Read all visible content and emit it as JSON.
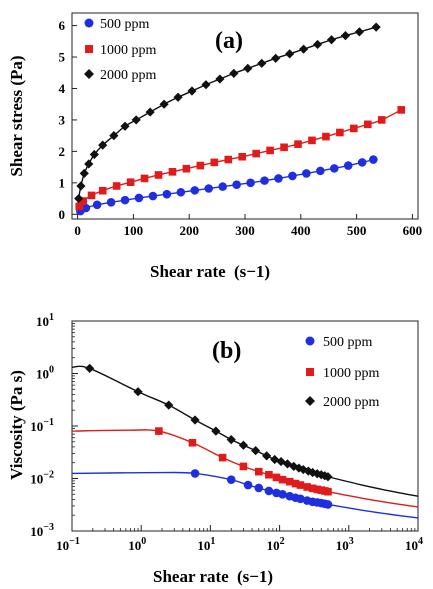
{
  "chart_data": [
    {
      "type": "scatter",
      "panel_label": "(a)",
      "xlabel": "Shear rate",
      "xlabel_unit": "(s−1)",
      "ylabel": "Shear stress (Pa)",
      "xlim": [
        -10,
        610
      ],
      "ylim": [
        -0.15,
        6.4
      ],
      "xticks": [
        0,
        100,
        200,
        300,
        400,
        500,
        600
      ],
      "yticks": [
        0,
        1,
        2,
        3,
        4,
        5,
        6
      ],
      "xticklabels": [
        "0",
        "100",
        "200",
        "300",
        "400",
        "500",
        "600"
      ],
      "yticklabels": [
        "0",
        "1",
        "2",
        "3",
        "4",
        "5",
        "6"
      ],
      "legend_position": "top-left",
      "fit_lines": true,
      "series": [
        {
          "name": "500 ppm",
          "color": "#1f2fe0",
          "marker": "circle",
          "x": [
            5,
            15,
            35,
            60,
            85,
            110,
            135,
            160,
            185,
            210,
            235,
            260,
            285,
            310,
            335,
            360,
            385,
            410,
            435,
            460,
            485,
            510,
            530
          ],
          "y": [
            0.1,
            0.2,
            0.3,
            0.38,
            0.45,
            0.52,
            0.58,
            0.64,
            0.7,
            0.76,
            0.82,
            0.88,
            0.94,
            1.0,
            1.07,
            1.14,
            1.22,
            1.3,
            1.38,
            1.46,
            1.55,
            1.65,
            1.74
          ]
        },
        {
          "name": "1000 ppm",
          "color": "#e01b1b",
          "marker": "square",
          "x": [
            3,
            10,
            25,
            45,
            70,
            95,
            120,
            145,
            170,
            195,
            220,
            245,
            270,
            295,
            320,
            345,
            370,
            395,
            420,
            445,
            470,
            495,
            520,
            545,
            580
          ],
          "y": [
            0.25,
            0.42,
            0.6,
            0.75,
            0.9,
            1.02,
            1.14,
            1.25,
            1.35,
            1.45,
            1.55,
            1.65,
            1.74,
            1.83,
            1.93,
            2.03,
            2.13,
            2.23,
            2.35,
            2.47,
            2.6,
            2.73,
            2.86,
            3.0,
            3.32
          ]
        },
        {
          "name": "2000 ppm",
          "color": "#111111",
          "marker": "diamond",
          "x": [
            2,
            6,
            12,
            20,
            30,
            45,
            65,
            85,
            105,
            130,
            155,
            180,
            205,
            230,
            255,
            280,
            305,
            330,
            355,
            380,
            405,
            430,
            455,
            480,
            505,
            535
          ],
          "y": [
            0.5,
            0.9,
            1.3,
            1.6,
            1.9,
            2.2,
            2.5,
            2.8,
            3.0,
            3.25,
            3.5,
            3.72,
            3.92,
            4.12,
            4.3,
            4.48,
            4.64,
            4.8,
            4.96,
            5.1,
            5.25,
            5.4,
            5.55,
            5.68,
            5.8,
            5.95
          ]
        }
      ]
    },
    {
      "type": "scatter",
      "panel_label": "(b)",
      "xlabel": "Shear rate",
      "xlabel_unit": "(s−1)",
      "ylabel": "Viscosity (Pa s)",
      "xscale": "log",
      "yscale": "log",
      "xlim": [
        0.1,
        10000
      ],
      "ylim": [
        0.001,
        10
      ],
      "xticks": [
        0.1,
        1,
        10,
        100,
        1000,
        10000
      ],
      "yticks": [
        0.001,
        0.01,
        0.1,
        1,
        10
      ],
      "xticklabels": [
        [
          "10",
          "−1"
        ],
        [
          "10",
          "0"
        ],
        [
          "10",
          "1"
        ],
        [
          "10",
          "2"
        ],
        [
          "10",
          "3"
        ],
        [
          "10",
          "4"
        ]
      ],
      "yticklabels": [
        [
          "10",
          "−3"
        ],
        [
          "10",
          "−2"
        ],
        [
          "10",
          "−1"
        ],
        [
          "10",
          "0"
        ],
        [
          "10",
          "1"
        ]
      ],
      "legend_position": "top-right",
      "fit_lines": true,
      "series": [
        {
          "name": "500 ppm",
          "color": "#1f2fe0",
          "marker": "circle",
          "x": [
            6,
            20,
            35,
            50,
            70,
            90,
            110,
            140,
            170,
            200,
            250,
            300,
            350,
            400,
            450,
            500
          ],
          "y": [
            0.0125,
            0.0095,
            0.0075,
            0.0066,
            0.0058,
            0.0053,
            0.005,
            0.0046,
            0.0043,
            0.0041,
            0.0038,
            0.0036,
            0.0035,
            0.0034,
            0.0033,
            0.0032
          ]
        },
        {
          "name": "1000 ppm",
          "color": "#e01b1b",
          "marker": "square",
          "x": [
            1.8,
            5.5,
            15,
            30,
            50,
            70,
            90,
            110,
            140,
            170,
            200,
            250,
            300,
            350,
            400,
            450,
            500
          ],
          "y": [
            0.08,
            0.048,
            0.025,
            0.017,
            0.0135,
            0.0118,
            0.0105,
            0.0095,
            0.0087,
            0.008,
            0.0075,
            0.0069,
            0.0065,
            0.0062,
            0.006,
            0.0058,
            0.0056
          ]
        },
        {
          "name": "2000 ppm",
          "color": "#111111",
          "marker": "diamond",
          "x": [
            0.18,
            0.9,
            2.5,
            6,
            12,
            20,
            30,
            45,
            65,
            85,
            105,
            130,
            160,
            190,
            220,
            260,
            300,
            350,
            400,
            450,
            500
          ],
          "y": [
            1.25,
            0.45,
            0.25,
            0.13,
            0.08,
            0.055,
            0.043,
            0.034,
            0.027,
            0.023,
            0.021,
            0.019,
            0.017,
            0.0158,
            0.0148,
            0.0138,
            0.013,
            0.0123,
            0.0118,
            0.0113,
            0.0108
          ]
        }
      ]
    }
  ]
}
